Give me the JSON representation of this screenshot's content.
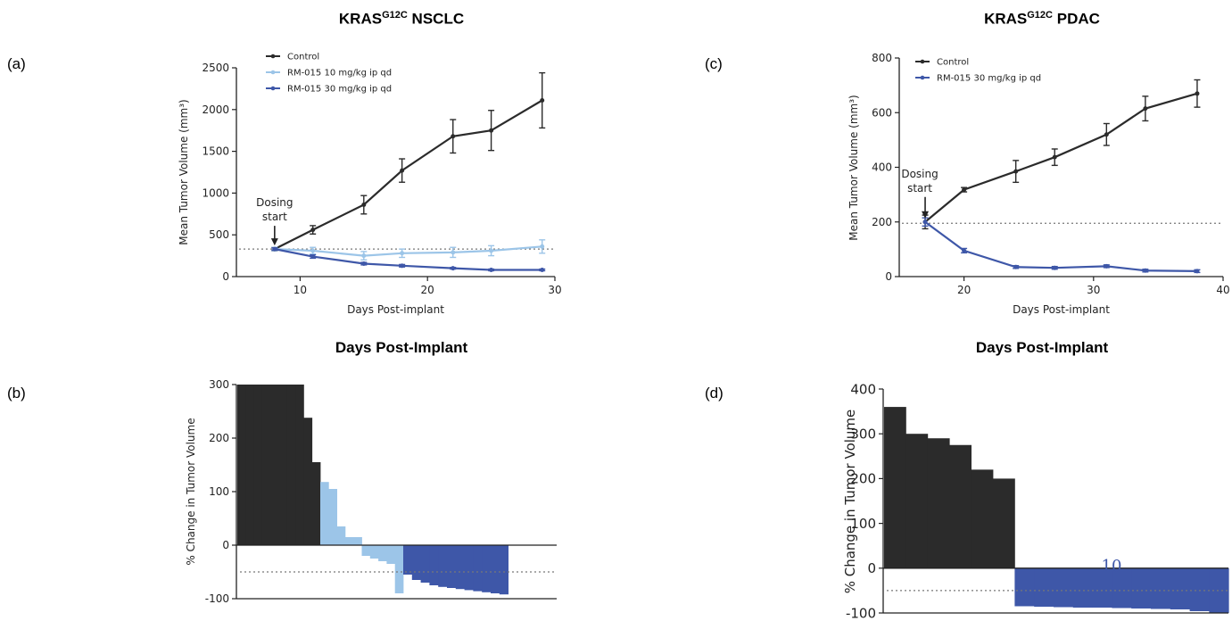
{
  "titles": {
    "nsclc": "NSCLC",
    "pdac": "PDAC",
    "kras": "KRAS",
    "sup": "G12C",
    "days_left": "Days Post-Implant",
    "days_right": "Days Post-Implant"
  },
  "panel_labels": {
    "a": "(a)",
    "b": "(b)",
    "c": "(c)",
    "d": "(d)"
  },
  "colors": {
    "control": "#2b2b2b",
    "light": "#9cc5e8",
    "dark": "#3e57a8",
    "dotted": "#777777"
  },
  "chart_data": [
    {
      "id": "a",
      "type": "line",
      "xlabel": "Days Post-implant",
      "ylabel": "Mean Tumor Volume (mm³)",
      "xlim": [
        5,
        30
      ],
      "ylim": [
        0,
        2500
      ],
      "xticks": [
        10,
        20,
        30
      ],
      "yticks": [
        0,
        500,
        1000,
        1500,
        2000,
        2500
      ],
      "annotation": {
        "line1": "Dosing",
        "line2": "start",
        "x": 8,
        "y": 330
      },
      "reference_line": 330,
      "series": [
        {
          "name": "Control",
          "color_key": "control",
          "x": [
            8,
            11,
            15,
            18,
            22,
            25,
            29
          ],
          "y": [
            330,
            560,
            860,
            1270,
            1680,
            1750,
            2110
          ],
          "err": [
            20,
            50,
            110,
            140,
            200,
            240,
            330
          ]
        },
        {
          "name": "RM-015 10 mg/kg ip qd",
          "color_key": "light",
          "x": [
            8,
            11,
            15,
            18,
            22,
            25,
            29
          ],
          "y": [
            330,
            310,
            250,
            280,
            290,
            310,
            360
          ],
          "err": [
            20,
            40,
            50,
            50,
            60,
            60,
            80
          ]
        },
        {
          "name": "RM-015 30 mg/kg ip qd",
          "color_key": "dark",
          "x": [
            8,
            11,
            15,
            18,
            22,
            25,
            29
          ],
          "y": [
            330,
            240,
            155,
            130,
            100,
            80,
            80
          ],
          "err": [
            15,
            20,
            15,
            15,
            10,
            10,
            10
          ]
        }
      ]
    },
    {
      "id": "b",
      "type": "bar",
      "ylabel": "% Change in Tumor Volume",
      "ylim": [
        -100,
        300
      ],
      "yticks": [
        -100,
        0,
        100,
        200,
        300
      ],
      "reference_line": -50,
      "groups": [
        {
          "color_key": "control",
          "values": [
            300,
            300,
            300,
            300,
            300,
            300,
            300,
            300,
            238,
            155
          ]
        },
        {
          "color_key": "light",
          "values": [
            118,
            105,
            35,
            15,
            15,
            -20,
            -25,
            -30,
            -35,
            -90
          ]
        },
        {
          "color_key": "dark",
          "values": [
            -55,
            -65,
            -70,
            -75,
            -78,
            -80,
            -82,
            -84,
            -86,
            -88,
            -90,
            -92
          ]
        }
      ]
    },
    {
      "id": "c",
      "type": "line",
      "xlabel": "Days Post-implant",
      "ylabel": "Mean Tumor Volume (mm³)",
      "xlim": [
        15,
        40
      ],
      "ylim": [
        0,
        800
      ],
      "xticks": [
        20,
        30,
        40
      ],
      "yticks": [
        0,
        200,
        400,
        600,
        800
      ],
      "annotation": {
        "line1": "Dosing",
        "line2": "start",
        "x": 17,
        "y": 200
      },
      "reference_line": 195,
      "series": [
        {
          "name": "Control",
          "color_key": "control",
          "x": [
            17,
            20,
            24,
            27,
            31,
            34,
            38
          ],
          "y": [
            200,
            318,
            385,
            437,
            520,
            615,
            670
          ],
          "err": [
            25,
            8,
            40,
            30,
            40,
            45,
            50
          ]
        },
        {
          "name": "RM-015 30 mg/kg ip qd",
          "color_key": "dark",
          "x": [
            17,
            20,
            24,
            27,
            31,
            34,
            38
          ],
          "y": [
            200,
            95,
            35,
            32,
            38,
            22,
            20
          ],
          "err": [
            15,
            8,
            5,
            5,
            5,
            5,
            5
          ]
        }
      ]
    },
    {
      "id": "d",
      "type": "bar",
      "ylabel": "% Change in Tumor Volume",
      "ylim": [
        -100,
        400
      ],
      "yticks": [
        -100,
        0,
        100,
        200,
        300,
        400
      ],
      "reference_line": -50,
      "annotation": "10",
      "groups": [
        {
          "color_key": "control",
          "values": [
            360,
            300,
            290,
            275,
            220,
            200
          ]
        },
        {
          "color_key": "dark",
          "values": [
            -85,
            -86,
            -87,
            -88,
            -88,
            -89,
            -90,
            -91,
            -92,
            -96,
            -100
          ]
        }
      ]
    }
  ]
}
